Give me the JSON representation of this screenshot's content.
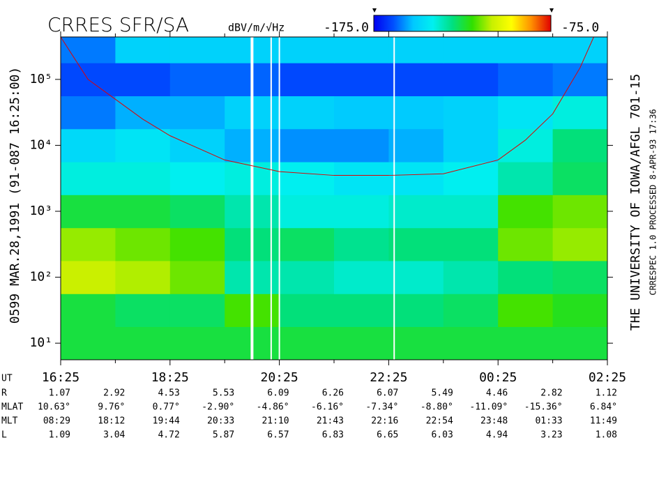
{
  "chart_data": {
    "type": "heatmap",
    "title": "CRRES SFR/SA",
    "units": "dBV/m/√Hz",
    "clim": [
      -175.0,
      -75.0
    ],
    "clim_labels": [
      "-175.0",
      "-75.0"
    ],
    "colormap": [
      "#0000f0",
      "#0050ff",
      "#00c8ff",
      "#00f0f0",
      "#00e080",
      "#30e000",
      "#c8f000",
      "#ffff00",
      "#ff9000",
      "#e00000"
    ],
    "left_label": "0599  MAR.28,1991  (91-087 16:25:00)",
    "right_label": "THE UNIVERSITY OF IOWA/AFGL 701-15",
    "right_sublabel": "CRRESPEC 1.0  PROCESSED  8-APR-93  17:36",
    "log_y": true,
    "xlim": [
      0,
      10
    ],
    "ylim": [
      5.6,
      440000
    ],
    "xticks": [
      {
        "value": 0,
        "label": "16:25"
      },
      {
        "value": 2,
        "label": "18:25"
      },
      {
        "value": 4,
        "label": "20:25"
      },
      {
        "value": 6,
        "label": "22:25"
      },
      {
        "value": 8,
        "label": "00:25"
      },
      {
        "value": 10,
        "label": "02:25"
      }
    ],
    "xminor": [
      1,
      3,
      5,
      7,
      9
    ],
    "yticks": [
      {
        "value": 10,
        "label": "10¹"
      },
      {
        "value": 100,
        "label": "10²"
      },
      {
        "value": 1000,
        "label": "10³"
      },
      {
        "value": 10000,
        "label": "10⁴"
      },
      {
        "value": 100000,
        "label": "10⁵"
      }
    ],
    "xbins": [
      0,
      1,
      2,
      3,
      4,
      5,
      6,
      7,
      8,
      9,
      10
    ],
    "ybins": [
      5.6,
      17.8,
      56.2,
      178,
      562,
      1780,
      5620,
      17800,
      56200,
      178000,
      440000
    ],
    "z": [
      [
        -125,
        -125,
        -125,
        -125,
        -125,
        -125,
        -125,
        -125,
        -125,
        -125
      ],
      [
        -125,
        -128,
        -128,
        -118,
        -130,
        -130,
        -130,
        -128,
        -118,
        -122
      ],
      [
        -108,
        -110,
        -115,
        -135,
        -135,
        -138,
        -138,
        -135,
        -130,
        -128
      ],
      [
        -112,
        -115,
        -118,
        -130,
        -128,
        -132,
        -130,
        -130,
        -115,
        -112
      ],
      [
        -125,
        -125,
        -128,
        -135,
        -140,
        -140,
        -138,
        -138,
        -118,
        -115
      ],
      [
        -140,
        -140,
        -142,
        -140,
        -142,
        -145,
        -145,
        -142,
        -135,
        -128
      ],
      [
        -148,
        -145,
        -150,
        -155,
        -158,
        -158,
        -155,
        -150,
        -140,
        -130
      ],
      [
        -160,
        -155,
        -155,
        -150,
        -150,
        -152,
        -152,
        -150,
        -145,
        -140
      ],
      [
        -165,
        -165,
        -162,
        -162,
        -165,
        -165,
        -165,
        -165,
        -162,
        -160
      ],
      [
        -160,
        -150,
        -150,
        -150,
        -150,
        -150,
        -150,
        -150,
        -150,
        -150
      ]
    ],
    "overlay_line": {
      "color": "#e00000",
      "x": [
        0,
        0.5,
        1,
        1.5,
        2,
        3,
        4,
        5,
        6,
        7,
        8,
        8.5,
        9,
        9.5,
        9.75
      ],
      "values": [
        440000,
        100000,
        50000,
        25000,
        14000,
        6000,
        4000,
        3500,
        3500,
        3700,
        6000,
        12000,
        30000,
        150000,
        440000
      ]
    },
    "ephemeris": {
      "ut_label": "UT",
      "rows": [
        {
          "label": "R",
          "values": [
            "1.07",
            "2.92",
            "4.53",
            "5.53",
            "6.09",
            "6.26",
            "6.07",
            "5.49",
            "4.46",
            "2.82",
            "1.12"
          ]
        },
        {
          "label": "MLAT",
          "values": [
            "10.63°",
            "9.76°",
            "0.77°",
            "-2.90°",
            "-4.86°",
            "-6.16°",
            "-7.34°",
            "-8.80°",
            "-11.09°",
            "-15.36°",
            "6.84°"
          ]
        },
        {
          "label": "MLT",
          "values": [
            "08:29",
            "18:12",
            "19:44",
            "20:33",
            "21:10",
            "21:43",
            "22:16",
            "22:54",
            "23:48",
            "01:33",
            "11:49"
          ]
        },
        {
          "label": "L",
          "values": [
            "1.09",
            "3.04",
            "4.72",
            "5.87",
            "6.57",
            "6.83",
            "6.65",
            "6.03",
            "4.94",
            "3.23",
            "1.08"
          ]
        }
      ]
    }
  }
}
